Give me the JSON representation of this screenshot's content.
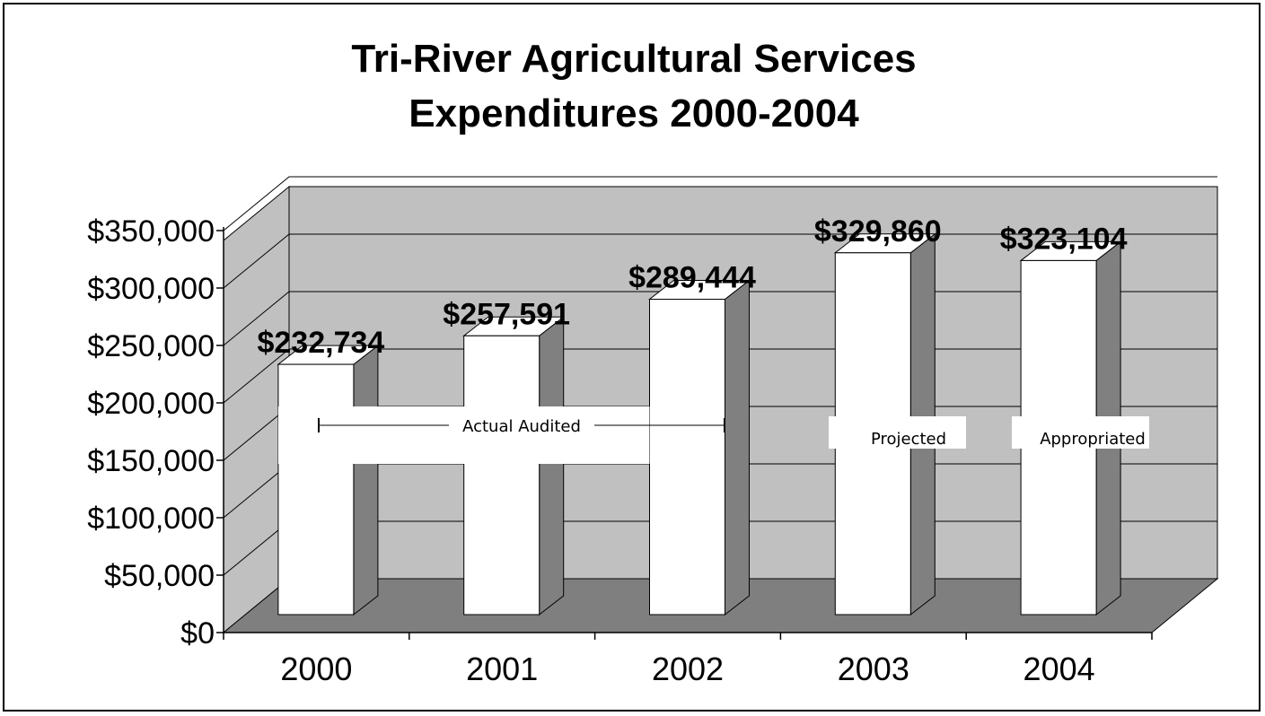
{
  "chart_data": {
    "type": "bar",
    "title": [
      "Tri-River Agricultural Services",
      "Expenditures 2000-2004"
    ],
    "categories": [
      "2000",
      "2001",
      "2002",
      "2003",
      "2004"
    ],
    "values": [
      232734,
      257591,
      289444,
      329860,
      323104
    ],
    "data_labels": [
      "$232,734",
      "$257,591",
      "$289,444",
      "$329,860",
      "$323,104"
    ],
    "yticks": [
      "$0",
      "$50,000",
      "$100,000",
      "$150,000",
      "$200,000",
      "$250,000",
      "$300,000",
      "$350,000"
    ],
    "ylim": [
      0,
      350000
    ],
    "grid": true,
    "annotations": {
      "actual": "Actual Audited",
      "projected": "Projected",
      "appropriated": "Appropriated"
    },
    "colors": {
      "wall": "#c0c0c0",
      "floor": "#7f7f7f",
      "bar_front": "#ffffff",
      "bar_side": "#808080",
      "bar_top": "#ffffff"
    }
  }
}
